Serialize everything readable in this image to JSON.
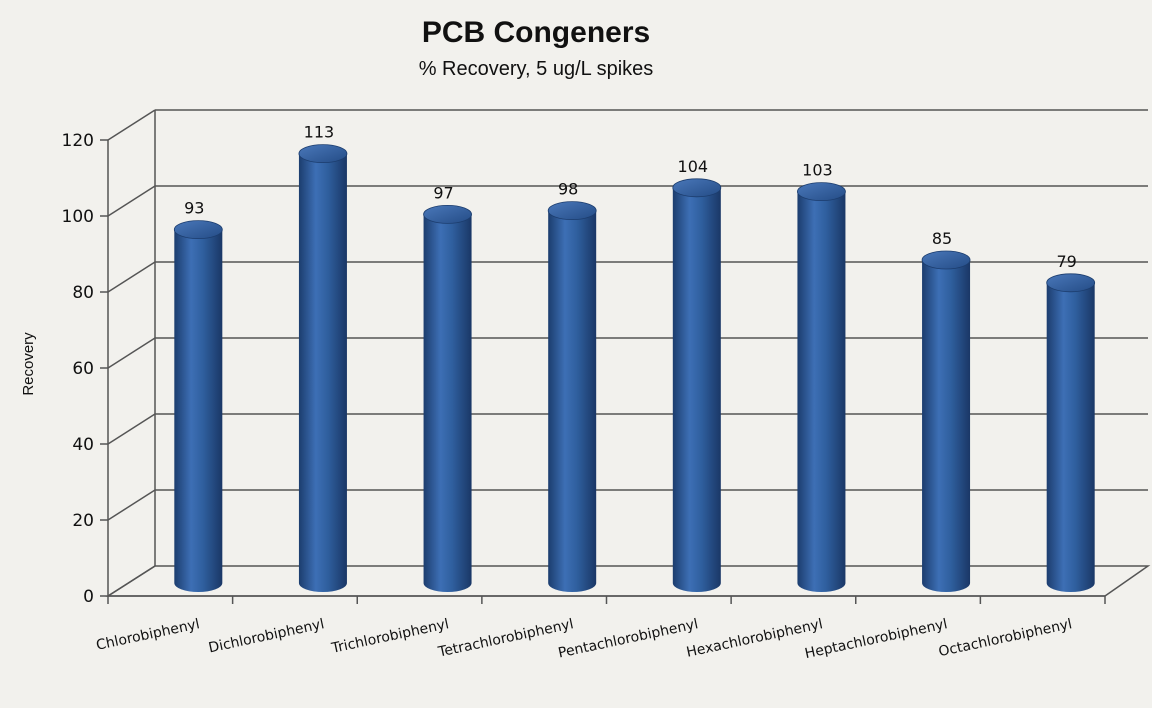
{
  "chart_data": {
    "type": "bar",
    "title": "PCB Congeners",
    "subtitle": "% Recovery, 5 ug/L spikes",
    "xlabel": "",
    "ylabel": "Recovery",
    "categories": [
      "Chlorobiphenyl",
      "Dichlorobiphenyl",
      "Trichlorobiphenyl",
      "Tetrachlorobiphenyl",
      "Pentachlorobiphenyl",
      "Hexachlorobiphenyl",
      "Heptachlorobiphenyl",
      "Octachlorobiphenyl"
    ],
    "values": [
      93,
      113,
      97,
      98,
      104,
      103,
      85,
      79
    ],
    "ylim": [
      0,
      120
    ],
    "yticks": [
      0,
      20,
      40,
      60,
      80,
      100,
      120
    ],
    "grid": true,
    "legend": "none",
    "colors": {
      "bar": "#2f5f9e",
      "bar_light": "#5a86c4",
      "bar_dark": "#1c3d6e",
      "grid": "#555555",
      "background": "#f2f1ed"
    }
  }
}
